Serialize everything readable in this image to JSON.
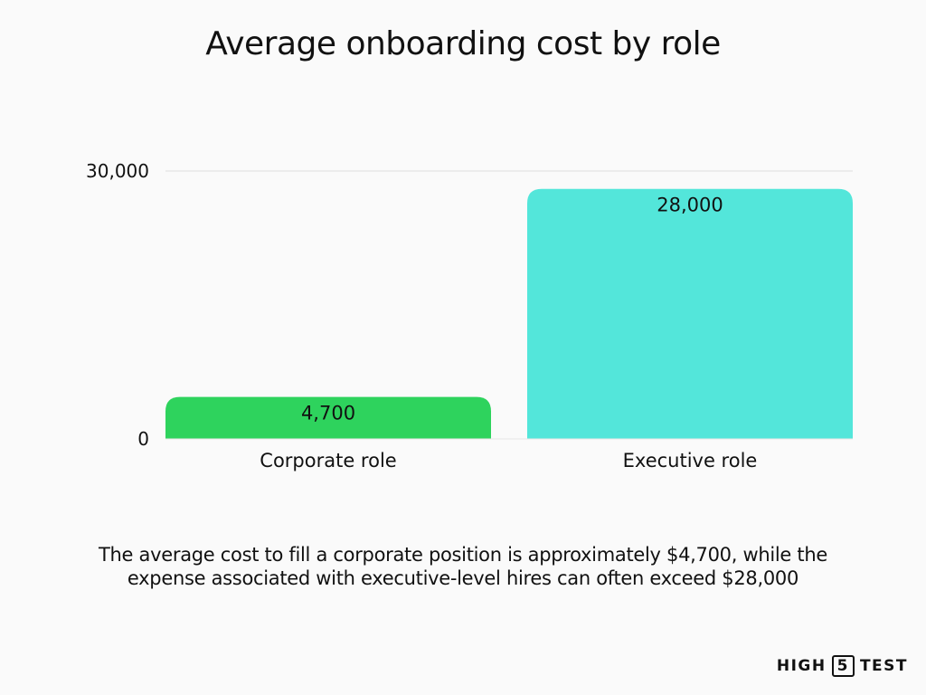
{
  "chart_data": {
    "type": "bar",
    "title": "Average onboarding cost by role",
    "categories": [
      "Corporate role",
      "Executive role"
    ],
    "values": [
      4700,
      28000
    ],
    "value_labels": [
      "4,700",
      "28,000"
    ],
    "colors": [
      "#2ed35d",
      "#53e6da"
    ],
    "ylim": [
      0,
      30000
    ],
    "yticks": [
      0,
      30000
    ],
    "ytick_labels": [
      "0",
      "30,000"
    ],
    "grid": true,
    "legend": "none"
  },
  "caption": "The average cost to fill a corporate position is approximately $4,700, while the expense associated with executive-level hires can often exceed $28,000",
  "brand": {
    "left": "HIGH",
    "number": "5",
    "right": "TEST"
  }
}
